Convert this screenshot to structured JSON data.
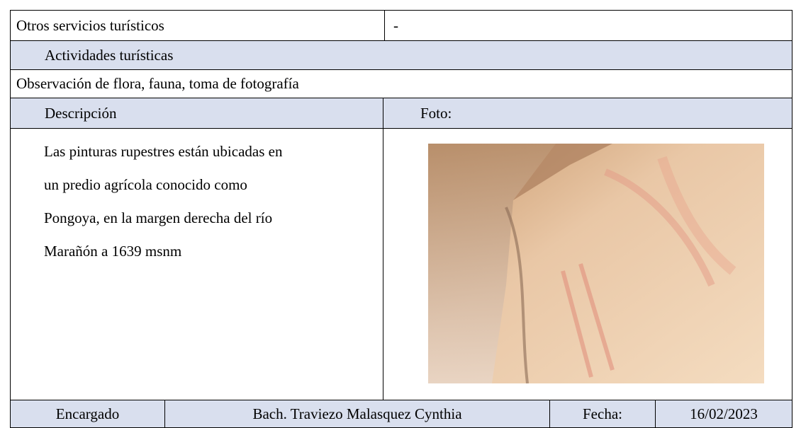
{
  "table": {
    "other_services": {
      "label": "Otros servicios turísticos",
      "value": "-"
    },
    "activities_header": "Actividades turísticas",
    "activities": "Observación de flora, fauna, toma de fotografía",
    "description_header": "Descripción",
    "photo_header": "Foto:",
    "description_lines": [
      "Las pinturas rupestres están ubicadas en",
      "un predio agrícola conocido como",
      "Pongoya, en la margen derecha del río",
      "Marañón a 1639 msnm"
    ],
    "footer": [
      "Encargado",
      "Bach. Traviezo Malasquez Cynthia",
      "Fecha:",
      "16/02/2023"
    ]
  }
}
